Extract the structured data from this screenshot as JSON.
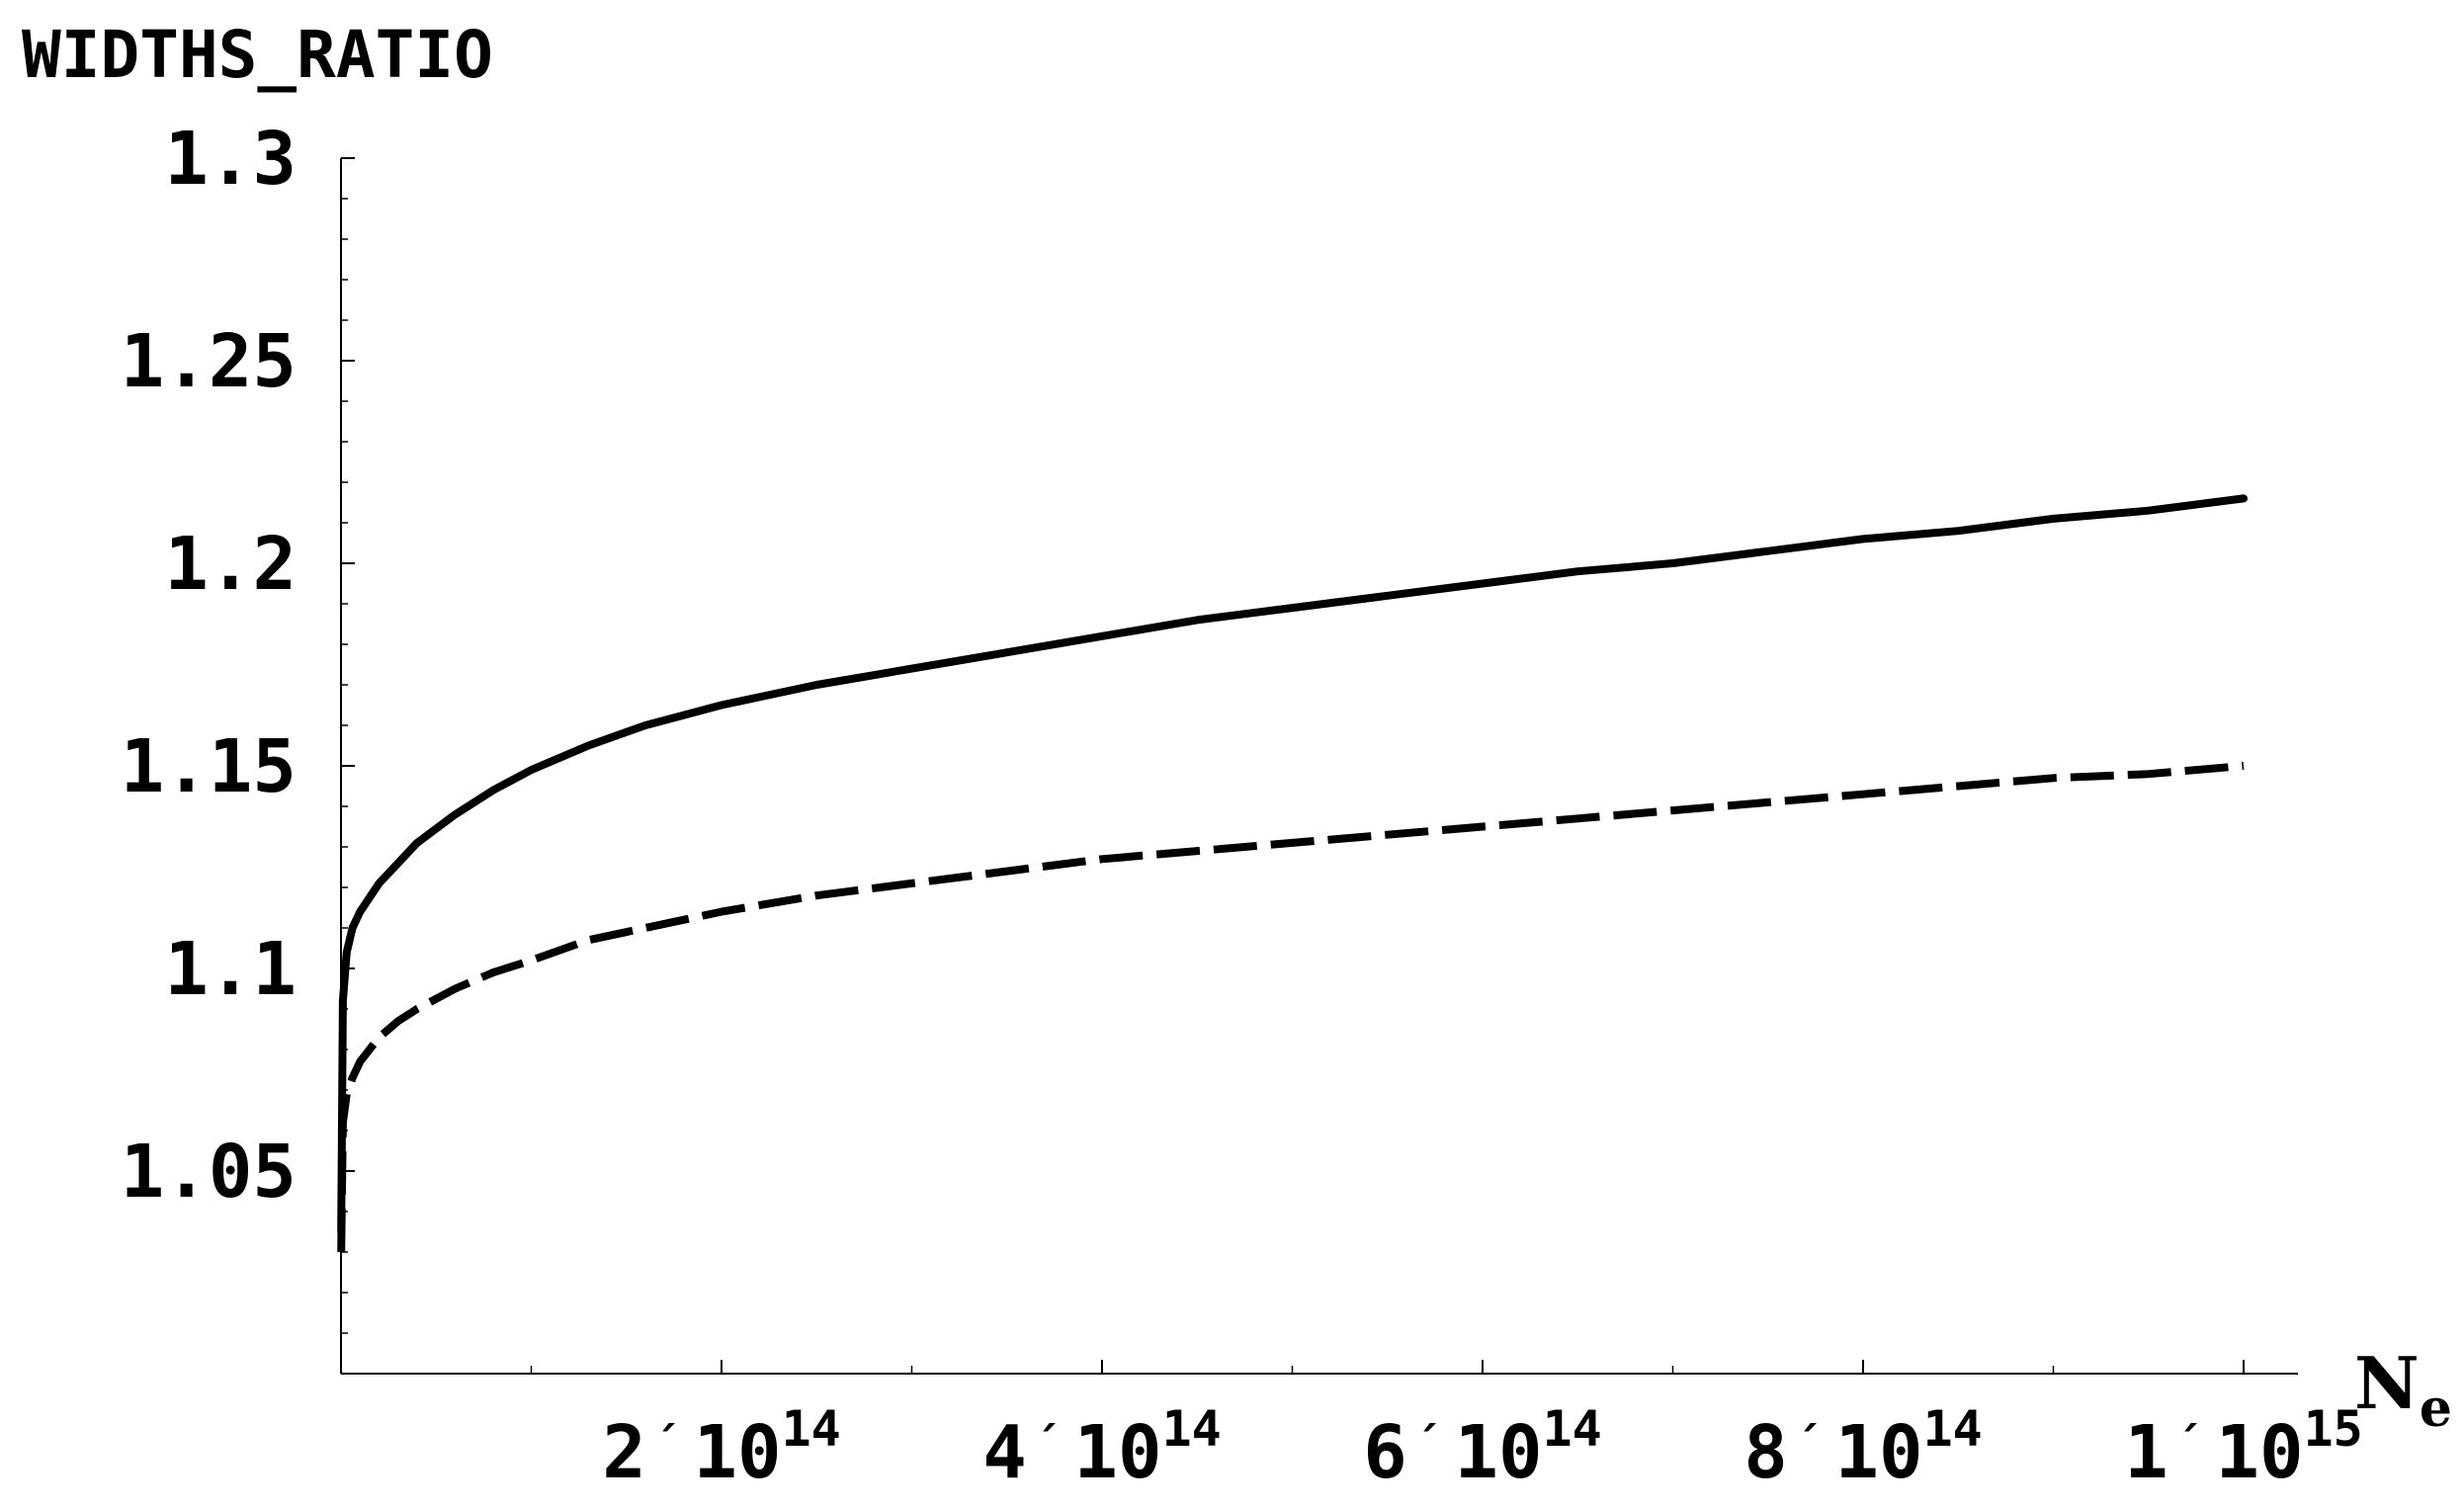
{
  "chart_data": {
    "type": "line",
    "title": "",
    "ylabel": "WIDTHS_RATIO",
    "xlabel": {
      "main": "N",
      "sub": "e"
    },
    "xlim": [
      0,
      1000000000000000.0
    ],
    "ylim": [
      1.0,
      1.3
    ],
    "grid": false,
    "legend": "none",
    "x_ticks": [
      {
        "value": 200000000000000.0,
        "mantissa": "2",
        "sep": "´",
        "base": "10",
        "exp": "14"
      },
      {
        "value": 400000000000000.0,
        "mantissa": "4",
        "sep": "´",
        "base": "10",
        "exp": "14"
      },
      {
        "value": 600000000000000.0,
        "mantissa": "6",
        "sep": "´",
        "base": "10",
        "exp": "14"
      },
      {
        "value": 800000000000000.0,
        "mantissa": "8",
        "sep": "´",
        "base": "10",
        "exp": "14"
      },
      {
        "value": 1000000000000000.0,
        "mantissa": "1",
        "sep": "´",
        "base": "10",
        "exp": "15"
      }
    ],
    "x_minor_ticks": [
      100000000000000.0,
      300000000000000.0,
      500000000000000.0,
      700000000000000.0,
      900000000000000.0
    ],
    "y_ticks": [
      {
        "value": 1.05,
        "label": "1.05"
      },
      {
        "value": 1.1,
        "label": "1.1"
      },
      {
        "value": 1.15,
        "label": "1.15"
      },
      {
        "value": 1.2,
        "label": "1.2"
      },
      {
        "value": 1.25,
        "label": "1.25"
      },
      {
        "value": 1.3,
        "label": "1.3"
      }
    ],
    "y_minor_ticks": [
      1.01,
      1.02,
      1.03,
      1.04,
      1.06,
      1.07,
      1.08,
      1.09,
      1.11,
      1.12,
      1.13,
      1.14,
      1.16,
      1.17,
      1.18,
      1.19,
      1.21,
      1.22,
      1.23,
      1.24,
      1.26,
      1.27,
      1.28,
      1.29
    ],
    "series": [
      {
        "style": "solid",
        "color": "#000000",
        "x": [
          100000000000.0,
          1000000000000.0,
          3000000000000.0,
          6000000000000.0,
          10000000000000.0,
          20000000000000.0,
          30000000000000.0,
          40000000000000.0,
          60000000000000.0,
          80000000000000.0,
          100000000000000.0,
          130000000000000.0,
          160000000000000.0,
          200000000000000.0,
          250000000000000.0,
          300000000000000.0,
          350000000000000.0,
          400000000000000.0,
          450000000000000.0,
          500000000000000.0,
          550000000000000.0,
          600000000000000.0,
          650000000000000.0,
          700000000000000.0,
          750000000000000.0,
          800000000000000.0,
          850000000000000.0,
          900000000000000.0,
          950000000000000.0,
          1000000000000000.0
        ],
        "y": [
          1.035,
          1.092,
          1.104,
          1.11,
          1.114,
          1.121,
          1.126,
          1.131,
          1.138,
          1.144,
          1.149,
          1.155,
          1.16,
          1.165,
          1.17,
          1.174,
          1.178,
          1.182,
          1.186,
          1.189,
          1.192,
          1.195,
          1.198,
          1.2,
          1.203,
          1.206,
          1.208,
          1.211,
          1.213,
          1.216
        ]
      },
      {
        "style": "dashed",
        "color": "#000000",
        "x": [
          100000000000.0,
          1000000000000.0,
          3000000000000.0,
          6000000000000.0,
          10000000000000.0,
          20000000000000.0,
          30000000000000.0,
          40000000000000.0,
          60000000000000.0,
          80000000000000.0,
          100000000000000.0,
          130000000000000.0,
          160000000000000.0,
          200000000000000.0,
          250000000000000.0,
          300000000000000.0,
          350000000000000.0,
          400000000000000.0,
          450000000000000.0,
          500000000000000.0,
          550000000000000.0,
          600000000000000.0,
          650000000000000.0,
          700000000000000.0,
          750000000000000.0,
          800000000000000.0,
          850000000000000.0,
          900000000000000.0,
          950000000000000.0,
          1000000000000000.0
        ],
        "y": [
          1.03,
          1.062,
          1.069,
          1.073,
          1.077,
          1.083,
          1.087,
          1.09,
          1.095,
          1.099,
          1.102,
          1.107,
          1.11,
          1.114,
          1.118,
          1.121,
          1.124,
          1.127,
          1.129,
          1.131,
          1.133,
          1.135,
          1.137,
          1.139,
          1.141,
          1.143,
          1.145,
          1.147,
          1.148,
          1.15
        ]
      }
    ]
  }
}
